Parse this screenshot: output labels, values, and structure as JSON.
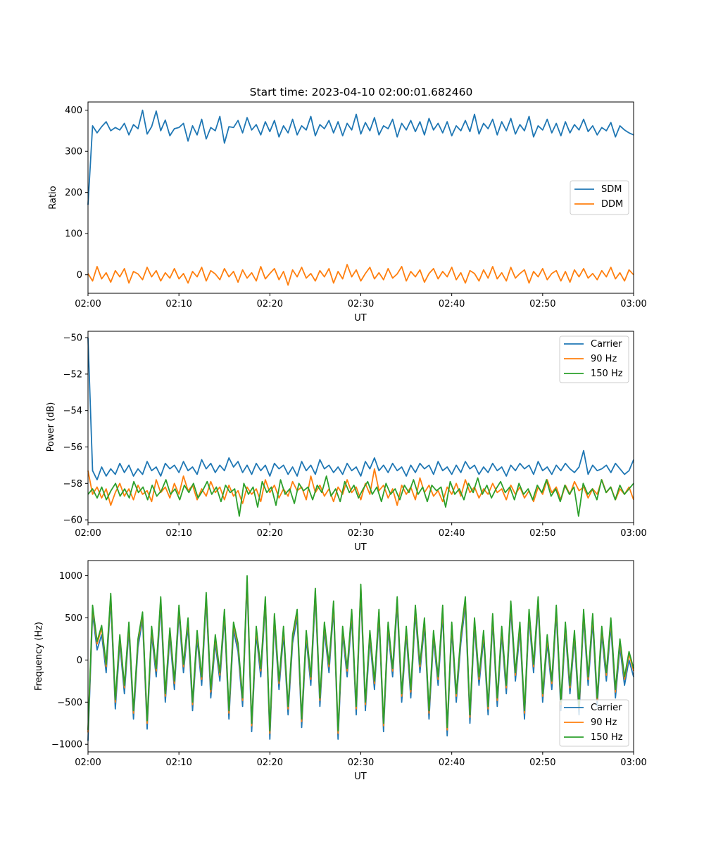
{
  "chart_data": [
    {
      "type": "line",
      "title": "Start time: 2023-04-10 02:00:01.682460",
      "xlabel": "UT",
      "ylabel": "Ratio",
      "xlim": [
        "02:00",
        "03:00"
      ],
      "xticks": [
        "02:00",
        "02:10",
        "02:20",
        "02:30",
        "02:40",
        "02:50",
        "03:00"
      ],
      "ylim": [
        -45,
        420
      ],
      "yticks": [
        0,
        100,
        200,
        300,
        400
      ],
      "grid": false,
      "legend_position": "center-right",
      "series": [
        {
          "name": "SDM",
          "color": "#1f77b4",
          "values": [
            170,
            362,
            345,
            360,
            372,
            350,
            358,
            352,
            368,
            340,
            365,
            355,
            400,
            342,
            360,
            398,
            350,
            376,
            338,
            355,
            358,
            368,
            325,
            362,
            340,
            378,
            330,
            358,
            350,
            385,
            320,
            360,
            358,
            375,
            345,
            382,
            352,
            365,
            340,
            372,
            348,
            375,
            335,
            362,
            345,
            378,
            340,
            362,
            352,
            385,
            338,
            365,
            355,
            375,
            345,
            372,
            338,
            368,
            352,
            390,
            342,
            370,
            350,
            382,
            340,
            362,
            355,
            378,
            335,
            368,
            352,
            375,
            348,
            372,
            340,
            380,
            352,
            368,
            345,
            372,
            338,
            362,
            350,
            375,
            348,
            390,
            342,
            368,
            355,
            378,
            340,
            372,
            350,
            380,
            342,
            365,
            350,
            385,
            335,
            362,
            352,
            378,
            345,
            368,
            338,
            372,
            345,
            365,
            352,
            378,
            348,
            362,
            340,
            358,
            350,
            370,
            335,
            362,
            352,
            345,
            340
          ]
        },
        {
          "name": "DDM",
          "color": "#ff7f0e",
          "values": [
            3,
            -15,
            20,
            -10,
            5,
            -18,
            10,
            -5,
            15,
            -20,
            8,
            2,
            -12,
            18,
            -5,
            10,
            -15,
            5,
            -8,
            15,
            -10,
            3,
            -20,
            8,
            -5,
            18,
            -15,
            10,
            2,
            -12,
            15,
            -5,
            8,
            -18,
            12,
            -8,
            5,
            -15,
            20,
            -10,
            3,
            15,
            -12,
            8,
            -25,
            12,
            -5,
            18,
            -8,
            3,
            -15,
            10,
            -5,
            15,
            -20,
            8,
            -10,
            25,
            -5,
            12,
            -15,
            3,
            18,
            -10,
            5,
            -12,
            15,
            -8,
            2,
            20,
            -15,
            8,
            -5,
            12,
            -18,
            3,
            15,
            -10,
            8,
            -5,
            18,
            -12,
            5,
            -20,
            10,
            3,
            -15,
            12,
            -8,
            20,
            -10,
            5,
            -15,
            18,
            -8,
            3,
            12,
            -20,
            8,
            -5,
            15,
            -12,
            3,
            10,
            -15,
            8,
            -18,
            12,
            -5,
            15,
            -8,
            3,
            -12,
            10,
            -5,
            18,
            -10,
            5,
            -15,
            12,
            0
          ]
        }
      ]
    },
    {
      "type": "line",
      "title": "",
      "xlabel": "UT",
      "ylabel": "Power (dB)",
      "xlim": [
        "02:00",
        "03:00"
      ],
      "xticks": [
        "02:00",
        "02:10",
        "02:20",
        "02:30",
        "02:40",
        "02:50",
        "03:00"
      ],
      "ylim": [
        -60.15,
        -49.65
      ],
      "yticks": [
        -60,
        -58,
        -56,
        -54,
        -52,
        -50
      ],
      "grid": false,
      "legend_position": "top-right",
      "series": [
        {
          "name": "Carrier",
          "color": "#1f77b4",
          "values": [
            -50,
            -57.3,
            -57.8,
            -57.1,
            -57.6,
            -57.2,
            -57.5,
            -56.9,
            -57.4,
            -57.0,
            -57.6,
            -57.2,
            -57.5,
            -56.8,
            -57.3,
            -57.1,
            -57.6,
            -56.9,
            -57.2,
            -57.0,
            -57.4,
            -56.8,
            -57.3,
            -57.1,
            -57.5,
            -56.7,
            -57.2,
            -56.9,
            -57.4,
            -57.0,
            -57.3,
            -56.6,
            -57.1,
            -56.8,
            -57.4,
            -57.0,
            -57.5,
            -56.9,
            -57.3,
            -57.0,
            -57.6,
            -56.9,
            -57.2,
            -57.0,
            -57.5,
            -57.1,
            -57.6,
            -56.8,
            -57.3,
            -57.0,
            -57.5,
            -56.7,
            -57.2,
            -57.0,
            -57.4,
            -57.1,
            -57.5,
            -56.9,
            -57.3,
            -57.1,
            -57.6,
            -56.8,
            -57.2,
            -56.6,
            -57.3,
            -57.0,
            -57.4,
            -56.9,
            -57.3,
            -57.1,
            -57.6,
            -57.0,
            -57.4,
            -56.9,
            -57.2,
            -57.0,
            -57.5,
            -56.8,
            -57.3,
            -57.1,
            -57.5,
            -57.0,
            -57.4,
            -56.8,
            -57.2,
            -57.0,
            -57.5,
            -57.1,
            -57.4,
            -56.9,
            -57.3,
            -57.1,
            -57.6,
            -57.0,
            -57.3,
            -56.9,
            -57.2,
            -57.0,
            -57.5,
            -56.8,
            -57.3,
            -57.1,
            -57.5,
            -57.0,
            -57.3,
            -56.9,
            -57.2,
            -57.4,
            -57.1,
            -56.2,
            -57.5,
            -57.0,
            -57.3,
            -57.2,
            -57.0,
            -57.4,
            -56.9,
            -57.2,
            -57.5,
            -57.3,
            -56.7
          ]
        },
        {
          "name": "90 Hz",
          "color": "#ff7f0e",
          "values": [
            -57.3,
            -58.6,
            -58.2,
            -58.8,
            -58.3,
            -59.2,
            -58.5,
            -58.0,
            -58.7,
            -58.3,
            -58.9,
            -58.1,
            -58.6,
            -58.4,
            -59.0,
            -57.8,
            -58.5,
            -58.2,
            -58.8,
            -58.0,
            -58.6,
            -57.6,
            -58.4,
            -58.1,
            -58.9,
            -58.3,
            -58.7,
            -57.9,
            -58.5,
            -58.2,
            -58.9,
            -58.1,
            -58.7,
            -58.4,
            -59.1,
            -58.2,
            -58.6,
            -58.3,
            -59.0,
            -57.8,
            -58.5,
            -58.1,
            -58.8,
            -58.3,
            -58.7,
            -57.9,
            -58.4,
            -58.2,
            -58.9,
            -57.6,
            -58.5,
            -58.1,
            -58.7,
            -58.3,
            -59.0,
            -58.2,
            -58.6,
            -57.8,
            -58.5,
            -58.2,
            -58.9,
            -58.0,
            -58.6,
            -57.2,
            -58.4,
            -58.1,
            -58.8,
            -58.3,
            -59.2,
            -58.1,
            -58.6,
            -58.2,
            -58.9,
            -57.7,
            -58.5,
            -58.1,
            -58.7,
            -58.4,
            -59.0,
            -58.2,
            -58.6,
            -58.0,
            -58.7,
            -57.8,
            -58.5,
            -58.2,
            -58.8,
            -58.3,
            -58.6,
            -58.0,
            -58.5,
            -58.3,
            -58.9,
            -58.1,
            -58.6,
            -58.2,
            -58.8,
            -58.4,
            -59.0,
            -58.2,
            -58.6,
            -57.8,
            -58.5,
            -58.2,
            -58.9,
            -58.1,
            -58.6,
            -57.9,
            -58.4,
            -58.2,
            -58.8,
            -58.3,
            -58.6,
            -57.8,
            -58.5,
            -58.2,
            -58.9,
            -58.3,
            -58.6,
            -58.2,
            -58.9
          ]
        },
        {
          "name": "150 Hz",
          "color": "#2ca02c",
          "values": [
            -58.6,
            -58.3,
            -58.8,
            -58.2,
            -58.9,
            -58.4,
            -58.0,
            -58.7,
            -58.3,
            -58.8,
            -57.9,
            -58.5,
            -58.2,
            -58.9,
            -58.1,
            -58.7,
            -58.4,
            -57.8,
            -58.6,
            -58.3,
            -58.9,
            -58.1,
            -58.5,
            -58.0,
            -58.8,
            -58.4,
            -57.9,
            -58.6,
            -58.2,
            -59.0,
            -58.1,
            -58.5,
            -58.3,
            -59.8,
            -58.0,
            -58.6,
            -58.2,
            -59.3,
            -57.9,
            -58.5,
            -58.2,
            -59.2,
            -57.8,
            -58.6,
            -58.3,
            -59.1,
            -58.0,
            -58.4,
            -58.2,
            -58.9,
            -58.1,
            -58.5,
            -57.6,
            -58.7,
            -58.3,
            -59.0,
            -57.9,
            -58.5,
            -58.1,
            -58.8,
            -58.3,
            -57.9,
            -58.6,
            -58.2,
            -59.0,
            -58.0,
            -58.6,
            -58.3,
            -58.9,
            -58.1,
            -58.5,
            -57.8,
            -58.6,
            -58.2,
            -59.0,
            -58.1,
            -58.4,
            -58.2,
            -59.3,
            -57.9,
            -58.6,
            -58.3,
            -58.9,
            -58.0,
            -58.5,
            -57.7,
            -58.6,
            -58.1,
            -58.8,
            -58.3,
            -57.9,
            -58.5,
            -58.2,
            -58.9,
            -58.0,
            -58.6,
            -58.3,
            -58.9,
            -58.1,
            -58.5,
            -57.8,
            -58.7,
            -58.3,
            -59.0,
            -58.1,
            -58.6,
            -58.2,
            -59.8,
            -58.0,
            -58.6,
            -58.3,
            -58.9,
            -57.8,
            -58.5,
            -58.2,
            -58.9,
            -58.1,
            -58.6,
            -58.3,
            -58.0
          ]
        }
      ]
    },
    {
      "type": "line",
      "title": "",
      "xlabel": "UT",
      "ylabel": "Frequency (Hz)",
      "xlim": [
        "02:00",
        "03:00"
      ],
      "xticks": [
        "02:00",
        "02:10",
        "02:20",
        "02:30",
        "02:40",
        "02:50",
        "03:00"
      ],
      "ylim": [
        -1090,
        1180
      ],
      "yticks": [
        -1000,
        -500,
        0,
        500,
        1000
      ],
      "grid": false,
      "legend_position": "bottom-right",
      "series": [
        {
          "name": "Carrier",
          "color": "#1f77b4",
          "values": [
            -960,
            550,
            120,
            300,
            -150,
            700,
            -580,
            200,
            -400,
            350,
            -700,
            150,
            480,
            -820,
            300,
            -200,
            650,
            -500,
            280,
            -350,
            550,
            -150,
            400,
            -600,
            250,
            -300,
            700,
            -450,
            200,
            -250,
            500,
            -700,
            350,
            100,
            -550,
            900,
            -850,
            300,
            -200,
            650,
            -940,
            450,
            -350,
            300,
            -650,
            200,
            500,
            -800,
            250,
            -300,
            750,
            -550,
            350,
            -150,
            600,
            -940,
            300,
            -200,
            500,
            -650,
            800,
            -600,
            250,
            -350,
            500,
            -850,
            350,
            -200,
            650,
            -500,
            300,
            -450,
            550,
            -150,
            400,
            -700,
            250,
            -300,
            550,
            -900,
            350,
            -500,
            200,
            650,
            -750,
            400,
            -300,
            250,
            -650,
            450,
            -550,
            300,
            -400,
            600,
            -250,
            350,
            -700,
            500,
            -150,
            650,
            -500,
            200,
            -350,
            550,
            -600,
            350,
            -400,
            250,
            -650,
            500,
            -300,
            450,
            -550,
            300,
            -250,
            400,
            -450,
            150,
            -300,
            0,
            -200
          ]
        },
        {
          "name": "90 Hz",
          "color": "#ff7f0e",
          "values": [
            -860,
            620,
            190,
            380,
            -80,
            760,
            -500,
            270,
            -330,
            420,
            -630,
            220,
            540,
            -750,
            370,
            -130,
            720,
            -430,
            350,
            -280,
            620,
            -80,
            470,
            -530,
            320,
            -230,
            770,
            -380,
            270,
            -180,
            570,
            -630,
            420,
            170,
            -480,
            970,
            -780,
            370,
            -130,
            720,
            -870,
            520,
            -280,
            370,
            -580,
            270,
            570,
            -730,
            320,
            -230,
            820,
            -480,
            420,
            -80,
            670,
            -870,
            370,
            -130,
            570,
            -580,
            870,
            -530,
            320,
            -280,
            570,
            -780,
            420,
            -130,
            720,
            -430,
            370,
            -380,
            620,
            -80,
            470,
            -630,
            320,
            -230,
            620,
            -830,
            420,
            -430,
            270,
            720,
            -680,
            470,
            -230,
            320,
            -580,
            520,
            -480,
            370,
            -330,
            670,
            -180,
            420,
            -630,
            570,
            -80,
            720,
            -430,
            270,
            -280,
            620,
            -530,
            420,
            -330,
            320,
            -580,
            570,
            -230,
            520,
            -480,
            370,
            -180,
            470,
            -380,
            220,
            -230,
            70,
            -130
          ]
        },
        {
          "name": "150 Hz",
          "color": "#2ca02c",
          "values": [
            -830,
            650,
            220,
            410,
            -50,
            790,
            -470,
            300,
            -300,
            450,
            -600,
            250,
            570,
            -720,
            400,
            -100,
            750,
            -400,
            380,
            -250,
            650,
            -50,
            500,
            -500,
            350,
            -200,
            800,
            -350,
            300,
            -150,
            600,
            -600,
            450,
            200,
            -450,
            1000,
            -750,
            400,
            -100,
            750,
            -840,
            550,
            -250,
            400,
            -550,
            300,
            600,
            -700,
            350,
            -200,
            850,
            -450,
            450,
            -50,
            700,
            -840,
            400,
            -100,
            600,
            -550,
            900,
            -500,
            350,
            -250,
            600,
            -750,
            450,
            -100,
            750,
            -400,
            400,
            -350,
            650,
            -50,
            500,
            -600,
            350,
            -200,
            650,
            -800,
            450,
            -400,
            300,
            750,
            -650,
            500,
            -200,
            350,
            -550,
            550,
            -450,
            400,
            -300,
            700,
            -150,
            450,
            -600,
            600,
            -50,
            750,
            -400,
            300,
            -250,
            650,
            -500,
            450,
            -300,
            350,
            -550,
            600,
            -200,
            550,
            -450,
            400,
            -150,
            500,
            -350,
            250,
            -200,
            100,
            -100
          ]
        }
      ]
    }
  ]
}
